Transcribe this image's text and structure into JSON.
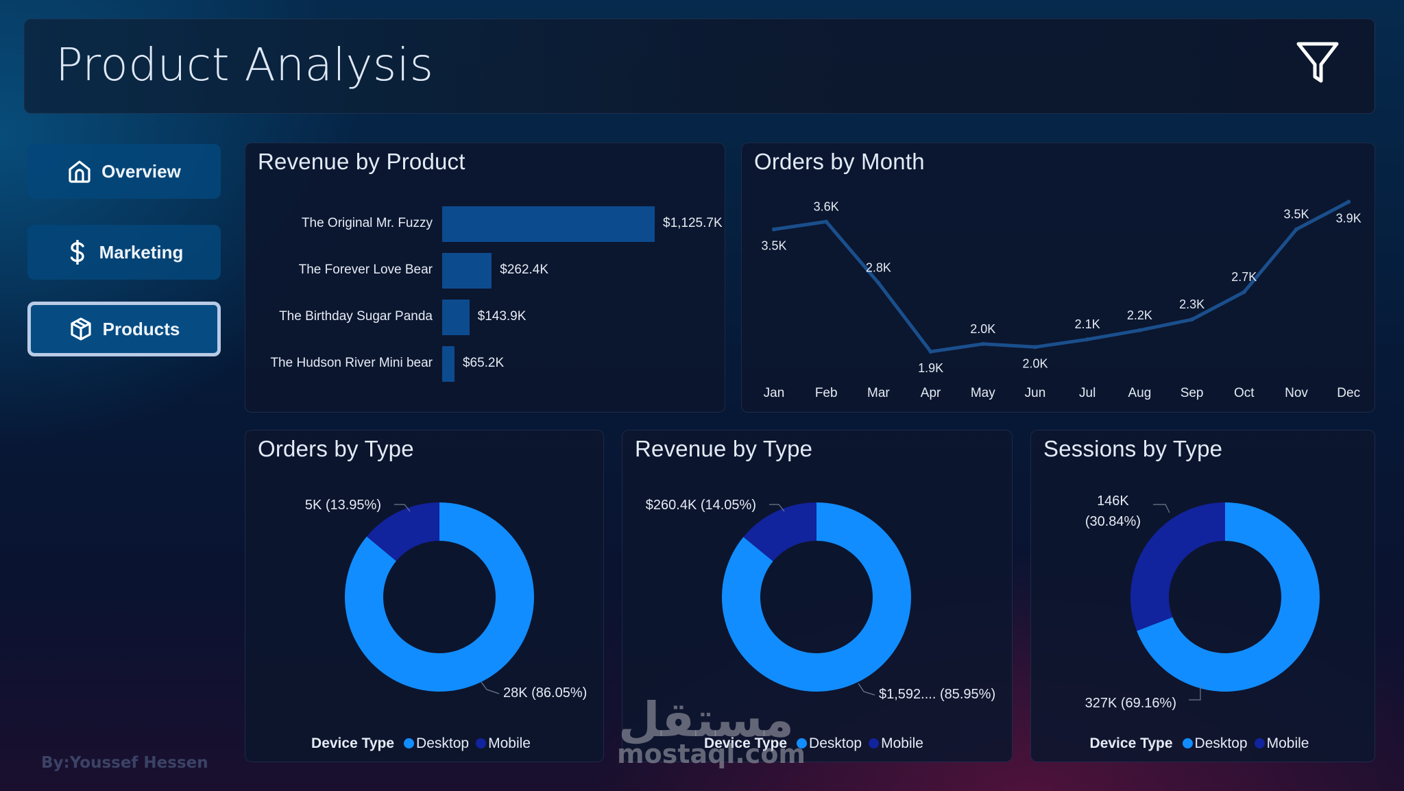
{
  "header": {
    "title": "Product Analysis",
    "filter_icon": "filter-funnel-icon"
  },
  "nav": {
    "items": [
      {
        "label": "Overview",
        "icon": "home-icon",
        "active": false
      },
      {
        "label": "Marketing",
        "icon": "dollar-icon",
        "active": false
      },
      {
        "label": "Products",
        "icon": "box-icon",
        "active": true
      }
    ]
  },
  "credit": "By:Youssef Hessen",
  "watermark": {
    "arabic": "مستقل",
    "latin": "mostaql.com"
  },
  "colors": {
    "bar": "#0d4b8f",
    "line": "#1a4f8c",
    "desktop": "#118dff",
    "mobile": "#12239e",
    "active_border": "#b9cbe6"
  },
  "chart_data": [
    {
      "type": "bar",
      "orientation": "horizontal",
      "title": "Revenue by Product",
      "categories": [
        "The Original Mr. Fuzzy",
        "The Forever Love Bear",
        "The Birthday Sugar Panda",
        "The Hudson River Mini bear"
      ],
      "values": [
        1125.7,
        262.4,
        143.9,
        65.2
      ],
      "value_unit": "$K",
      "data_labels": [
        "$1,125.7K",
        "$262.4K",
        "$143.9K",
        "$65.2K"
      ],
      "xlabel": "",
      "ylabel": "",
      "grid": false
    },
    {
      "type": "line",
      "title": "Orders by Month",
      "categories": [
        "Jan",
        "Feb",
        "Mar",
        "Apr",
        "May",
        "Jun",
        "Jul",
        "Aug",
        "Sep",
        "Oct",
        "Nov",
        "Dec"
      ],
      "values": [
        3.5,
        3.6,
        2.8,
        1.9,
        2.0,
        1.96,
        2.06,
        2.18,
        2.32,
        2.68,
        3.5,
        3.86
      ],
      "value_unit": "K",
      "data_labels": [
        "3.5K",
        "3.6K",
        "2.8K",
        "1.9K",
        "2.0K",
        "2.0K",
        "2.1K",
        "2.2K",
        "2.3K",
        "2.7K",
        "3.5K",
        "3.9K"
      ],
      "label_pos": [
        "below",
        "above",
        "above",
        "below",
        "above",
        "below",
        "above",
        "above",
        "above",
        "above",
        "above",
        "below"
      ],
      "ylim": [
        1.9,
        3.9
      ],
      "grid": false
    },
    {
      "type": "pie",
      "donut": true,
      "title": "Orders by Type",
      "legend_title": "Device Type",
      "categories": [
        "Desktop",
        "Mobile"
      ],
      "values": [
        86.05,
        13.95
      ],
      "data_labels": [
        "28K (86.05%)",
        "5K (13.95%)"
      ],
      "legend": "bottom"
    },
    {
      "type": "pie",
      "donut": true,
      "title": "Revenue by Type",
      "legend_title": "Device Type",
      "categories": [
        "Desktop",
        "Mobile"
      ],
      "values": [
        85.95,
        14.05
      ],
      "data_labels": [
        "$1,592.... (85.95%)",
        "$260.4K (14.05%)"
      ],
      "legend": "bottom"
    },
    {
      "type": "pie",
      "donut": true,
      "title": "Sessions by Type",
      "legend_title": "Device Type",
      "categories": [
        "Desktop",
        "Mobile"
      ],
      "values": [
        69.16,
        30.84
      ],
      "data_labels": [
        "327K (69.16%)",
        "146K (30.84%)"
      ],
      "data_labels_lines": [
        [
          "327K (69.16%)"
        ],
        [
          "146K",
          "(30.84%)"
        ]
      ],
      "legend": "bottom"
    }
  ]
}
